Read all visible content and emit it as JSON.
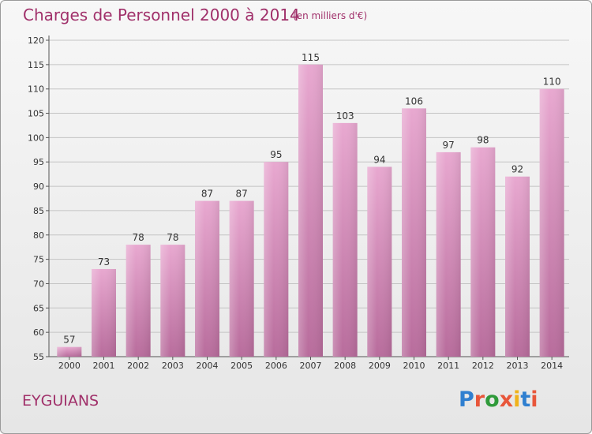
{
  "header": {
    "title": "Charges de Personnel 2000 à 2014",
    "subtitle": "(en milliers d'€)"
  },
  "footer": {
    "commune": "EYGUIANS",
    "logo": "Proxiti"
  },
  "colors": {
    "title": "#a0306a",
    "bar_top": "#e8a8d0",
    "bar_bottom": "#b86c9c",
    "logo_letters": [
      "#2f7fd0",
      "#e8563a",
      "#2f9a3a",
      "#e8563a",
      "#f0b21c",
      "#2f7fd0",
      "#e8563a"
    ]
  },
  "chart_data": {
    "type": "bar",
    "title": "Charges de Personnel 2000 à 2014",
    "subtitle": "(en milliers d'€)",
    "categories": [
      "2000",
      "2001",
      "2002",
      "2003",
      "2004",
      "2005",
      "2006",
      "2007",
      "2008",
      "2009",
      "2010",
      "2011",
      "2012",
      "2013",
      "2014"
    ],
    "values": [
      57,
      73,
      78,
      78,
      87,
      87,
      95,
      115,
      103,
      94,
      106,
      97,
      98,
      92,
      110
    ],
    "ylim": [
      55,
      120
    ],
    "yticks": [
      55,
      60,
      65,
      70,
      75,
      80,
      85,
      90,
      95,
      100,
      105,
      110,
      115,
      120
    ],
    "grid": true,
    "legend": "none"
  }
}
